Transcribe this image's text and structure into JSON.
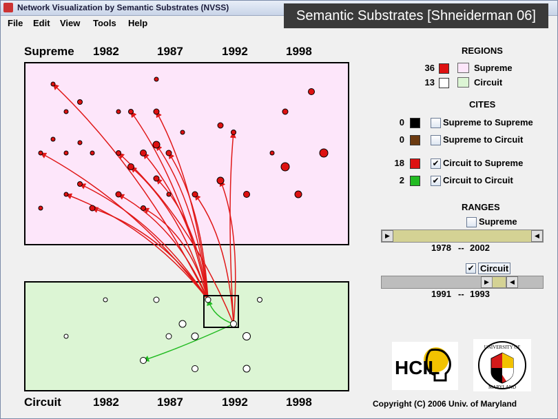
{
  "window": {
    "title": "Network Visualization by Semantic Substrates (NVSS)"
  },
  "overlay": {
    "caption": "Semantic Substrates [Shneiderman 06]"
  },
  "menu": [
    "File",
    "Edit",
    "View",
    "Tools",
    "Help"
  ],
  "supreme": {
    "label": "Supreme",
    "years": [
      "1982",
      "1987",
      "1992",
      "1998"
    ]
  },
  "circuit": {
    "label": "Circuit",
    "years": [
      "1982",
      "1987",
      "1992",
      "1998"
    ]
  },
  "regions": {
    "header": "REGIONS",
    "items": [
      {
        "count": "36",
        "swatch": "#dd1111",
        "region_color": "#fde6fa",
        "label": "Supreme"
      },
      {
        "count": "13",
        "swatch": "#ffffff",
        "region_color": "#dcf5d4",
        "label": "Circuit"
      }
    ]
  },
  "cites": {
    "header": "CITES",
    "items": [
      {
        "count": "0",
        "swatch": "#000000",
        "checked": "",
        "label": "Supreme to Supreme"
      },
      {
        "count": "0",
        "swatch": "#6b3a10",
        "checked": "",
        "label": "Supreme to Circuit"
      },
      {
        "count": "18",
        "swatch": "#dd1111",
        "checked": "✔",
        "label": "Circuit to Supreme"
      },
      {
        "count": "2",
        "swatch": "#22bb22",
        "checked": "✔",
        "label": "Circuit to Circuit"
      }
    ]
  },
  "ranges": {
    "header": "RANGES",
    "supreme": {
      "checked": "",
      "label": "Supreme",
      "start": "1978",
      "sep": "--",
      "end": "2002",
      "fill": "#d4d294"
    },
    "circuit": {
      "checked": "✔",
      "label": "Circuit",
      "start": "1991",
      "sep": "--",
      "end": "1993",
      "fill": "#d4d294"
    }
  },
  "footer": {
    "copyright": "Copyright (C) 2006   Univ. of Maryland"
  },
  "logos": {
    "hcil": "HCIL",
    "umd_top": "UNIVERSITY OF",
    "umd_bottom": "MARYLAND"
  },
  "colors": {
    "supreme_region": "#fde6fa",
    "circuit_region": "#dcf5d4",
    "cite_supreme": "#e01818",
    "cite_circuit": "#22bb22"
  },
  "chart_data": {
    "type": "scatter",
    "supreme_nodes_shown": 36,
    "circuit_nodes_shown": 13,
    "circuit_to_supreme_links": 18,
    "circuit_to_circuit_links": 2,
    "x_axis_ticks": [
      "1982",
      "1987",
      "1992",
      "1998"
    ]
  }
}
